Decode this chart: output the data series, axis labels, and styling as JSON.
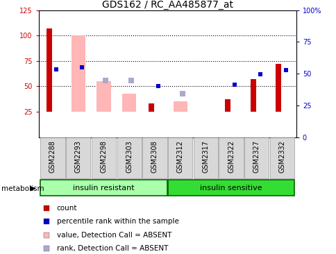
{
  "title": "GDS162 / RC_AA485877_at",
  "samples": [
    "GSM2288",
    "GSM2293",
    "GSM2298",
    "GSM2303",
    "GSM2308",
    "GSM2312",
    "GSM2317",
    "GSM2322",
    "GSM2327",
    "GSM2332"
  ],
  "count_values": [
    107,
    null,
    null,
    null,
    33,
    null,
    null,
    37,
    57,
    72
  ],
  "rank_values": [
    67,
    69,
    null,
    null,
    50,
    null,
    null,
    52,
    62,
    66
  ],
  "pink_bar_values": [
    null,
    100,
    55,
    43,
    null,
    35,
    null,
    null,
    null,
    null
  ],
  "lightblue_bar_values": [
    null,
    null,
    56,
    56,
    null,
    43,
    null,
    null,
    null,
    null
  ],
  "ylim_left": [
    0,
    125
  ],
  "ylim_right": [
    0,
    100
  ],
  "yticks_left": [
    25,
    50,
    75,
    100,
    125
  ],
  "yticks_right": [
    0,
    25,
    50,
    75,
    100
  ],
  "ytick_labels_right": [
    "0",
    "25",
    "50",
    "75",
    "100%"
  ],
  "hlines": [
    50,
    75,
    100
  ],
  "count_color": "#CC0000",
  "rank_color": "#0000CC",
  "pink_color": "#FFB6B6",
  "lightblue_color": "#AAAACC",
  "bg_color": "#FFFFFF",
  "ylabel_left_color": "#CC0000",
  "ylabel_right_color": "#0000CC",
  "title_fontsize": 10,
  "tick_fontsize": 7,
  "legend_fontsize": 7.5,
  "group_fontsize": 8,
  "group1_color": "#AAFFAA",
  "group2_color": "#33DD33",
  "group_border_color": "#006600"
}
